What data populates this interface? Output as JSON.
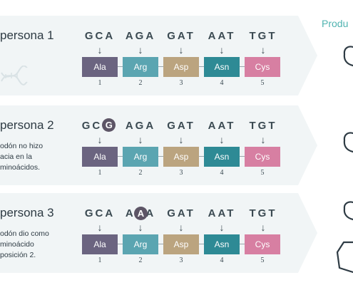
{
  "product_header": "Produ",
  "colors": {
    "panel_bg": "#f1f5f6",
    "Ala": "#6b6480",
    "Arg": "#5ba5b1",
    "Asp": "#bba47f",
    "Asn": "#2e8a95",
    "Cys": "#d77fa2",
    "accent": "#4fb3b0"
  },
  "panels": [
    {
      "title": "persona 1",
      "description": "",
      "codons": [
        "GCA",
        "AGA",
        "GAT",
        "AAT",
        "TGT"
      ],
      "amino_acids": [
        "Ala",
        "Arg",
        "Asp",
        "Asn",
        "Cys"
      ],
      "indices": [
        "1",
        "2",
        "3",
        "4",
        "5"
      ],
      "arrow": "↓"
    },
    {
      "title": "persona 2",
      "description": "odón no hizo\nacia en la\nminoácidos.",
      "codons": [
        "GC",
        "AGA",
        "GAT",
        "AAT",
        "TGT"
      ],
      "mutation": {
        "codon_index": 0,
        "base": "G"
      },
      "amino_acids": [
        "Ala",
        "Arg",
        "Asp",
        "Asn",
        "Cys"
      ],
      "indices": [
        "1",
        "2",
        "3",
        "4",
        "5"
      ],
      "arrow": "↓"
    },
    {
      "title": "persona 3",
      "description": "odón dio como\nminoácido\nposición 2.",
      "codons": [
        "GCA",
        "AGA",
        "GAT",
        "AAT",
        "TGT"
      ],
      "mutation": {
        "codon_index": 1,
        "base": "A"
      },
      "amino_acids": [
        "Ala",
        "Arg",
        "Asp",
        "Asn",
        "Cys"
      ],
      "indices": [
        "1",
        "2",
        "3",
        "4",
        "5"
      ],
      "arrow": "↓"
    }
  ]
}
